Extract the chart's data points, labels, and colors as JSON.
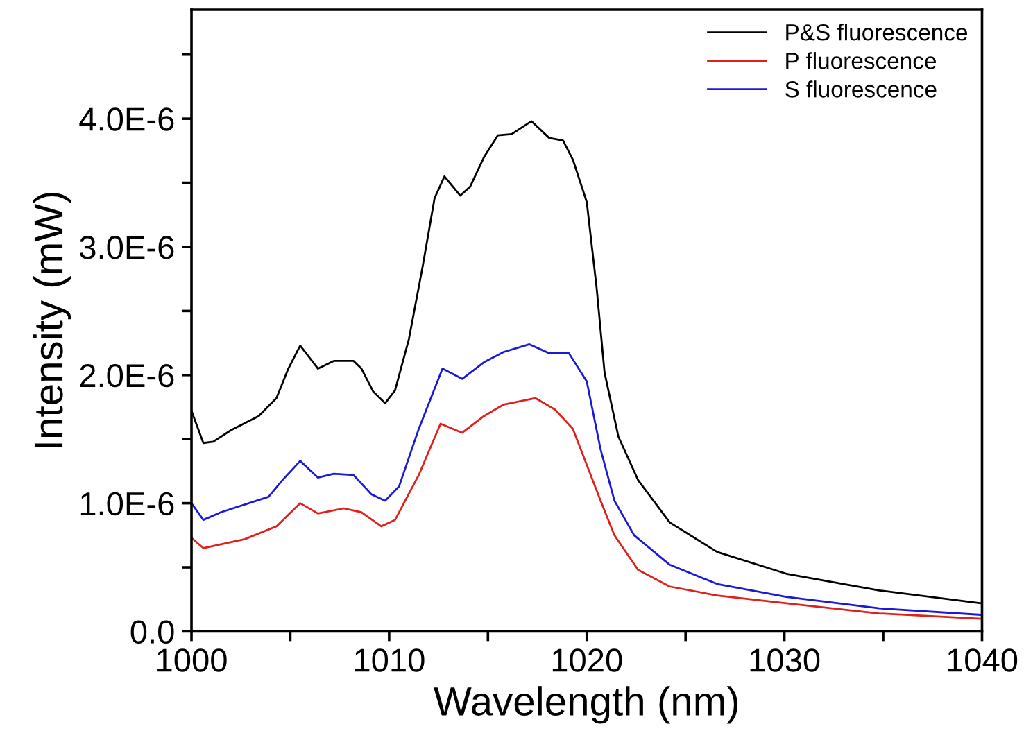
{
  "chart_data": {
    "type": "line",
    "xlabel": "Wavelength (nm)",
    "ylabel": "Intensity (mW)",
    "xlim": [
      1000,
      1040
    ],
    "xticks": [
      1000,
      {
        "value": 1005,
        "label": null
      },
      1010,
      {
        "value": 1015,
        "label": null
      },
      1020,
      {
        "value": 1025,
        "label": null
      },
      1030,
      {
        "value": 1035,
        "label": null
      },
      1040
    ],
    "ylim": [
      0,
      4.85e-06
    ],
    "yticks": [
      {
        "value": 0,
        "label": "0.0"
      },
      {
        "value": 5e-07,
        "label": null
      },
      {
        "value": 1e-06,
        "label": "1.0E-6"
      },
      {
        "value": 1.5e-06,
        "label": null
      },
      {
        "value": 2e-06,
        "label": "2.0E-6"
      },
      {
        "value": 2.5e-06,
        "label": null
      },
      {
        "value": 3e-06,
        "label": "3.0E-6"
      },
      {
        "value": 3.5e-06,
        "label": null
      },
      {
        "value": 4e-06,
        "label": "4.0E-6"
      },
      {
        "value": 4.5e-06,
        "label": null
      }
    ],
    "grid": false,
    "legend": "top right",
    "marker": "none",
    "line_style": "solid",
    "series": [
      {
        "name": "P&S fluorescence",
        "color": "#000000",
        "x": [
          1000,
          1000.6,
          1001.1,
          1002.0,
          1003.4,
          1004.3,
          1004.9,
          1005.5,
          1006.4,
          1007.2,
          1008.2,
          1008.6,
          1009.2,
          1009.8,
          1010.3,
          1011.0,
          1011.7,
          1012.3,
          1012.8,
          1013.6,
          1014.1,
          1014.8,
          1015.5,
          1016.2,
          1017.2,
          1018.1,
          1018.8,
          1019.3,
          1020.0,
          1020.5,
          1020.9,
          1021.6,
          1022.6,
          1024.2,
          1026.6,
          1030.1,
          1034.8,
          1039.9
        ],
        "values": [
          1.72e-06,
          1.47e-06,
          1.48e-06,
          1.57e-06,
          1.68e-06,
          1.82e-06,
          2.05e-06,
          2.23e-06,
          2.05e-06,
          2.11e-06,
          2.11e-06,
          2.05e-06,
          1.87e-06,
          1.78e-06,
          1.88e-06,
          2.28e-06,
          2.85e-06,
          3.38e-06,
          3.55e-06,
          3.4e-06,
          3.47e-06,
          3.7e-06,
          3.87e-06,
          3.88e-06,
          3.98e-06,
          3.85e-06,
          3.83e-06,
          3.68e-06,
          3.35e-06,
          2.68e-06,
          2.02e-06,
          1.52e-06,
          1.18e-06,
          8.5e-07,
          6.2e-07,
          4.5e-07,
          3.2e-07,
          2.2e-07
        ]
      },
      {
        "name": "P fluorescence",
        "color": "#e0201c",
        "x": [
          1000,
          1000.6,
          1002.7,
          1004.3,
          1005.5,
          1006.4,
          1007.7,
          1008.6,
          1009.6,
          1010.3,
          1011.5,
          1012.6,
          1013.7,
          1014.8,
          1015.8,
          1017.4,
          1018.4,
          1019.3,
          1020.0,
          1020.7,
          1021.4,
          1022.6,
          1024.2,
          1026.6,
          1030.1,
          1034.8,
          1039.9
        ],
        "values": [
          7.3e-07,
          6.5e-07,
          7.2e-07,
          8.2e-07,
          1e-06,
          9.2e-07,
          9.6e-07,
          9.3e-07,
          8.2e-07,
          8.7e-07,
          1.22e-06,
          1.62e-06,
          1.55e-06,
          1.68e-06,
          1.77e-06,
          1.82e-06,
          1.73e-06,
          1.58e-06,
          1.3e-06,
          1.02e-06,
          7.5e-07,
          4.8e-07,
          3.5e-07,
          2.8e-07,
          2.2e-07,
          1.4e-07,
          1e-07
        ]
      },
      {
        "name": "S fluorescence",
        "color": "#1a1ad6",
        "x": [
          1000,
          1000.6,
          1001.5,
          1003.9,
          1004.6,
          1005.5,
          1006.4,
          1007.2,
          1008.2,
          1009.1,
          1009.8,
          1010.5,
          1011.5,
          1012.7,
          1013.7,
          1014.8,
          1015.8,
          1017.1,
          1018.1,
          1019.1,
          1020.0,
          1020.7,
          1021.4,
          1022.4,
          1024.2,
          1026.6,
          1030.1,
          1034.8,
          1039.9
        ],
        "values": [
          1e-06,
          8.7e-07,
          9.3e-07,
          1.05e-06,
          1.18e-06,
          1.33e-06,
          1.2e-06,
          1.23e-06,
          1.22e-06,
          1.07e-06,
          1.02e-06,
          1.13e-06,
          1.58e-06,
          2.05e-06,
          1.97e-06,
          2.1e-06,
          2.18e-06,
          2.24e-06,
          2.17e-06,
          2.17e-06,
          1.95e-06,
          1.42e-06,
          1.02e-06,
          7.5e-07,
          5.2e-07,
          3.7e-07,
          2.7e-07,
          1.8e-07,
          1.3e-07
        ]
      }
    ]
  }
}
